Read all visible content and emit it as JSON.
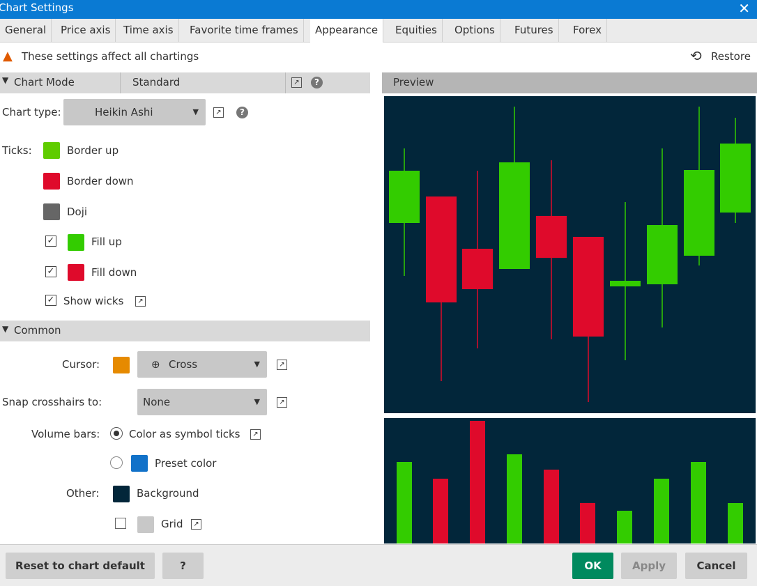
{
  "window": {
    "title": "Chart Settings"
  },
  "tabs": [
    "General",
    "Price axis",
    "Time axis",
    "Favorite time frames",
    "Appearance",
    "Equities",
    "Options",
    "Futures",
    "Forex"
  ],
  "notice": "These settings affect all chartings",
  "restore": "Restore",
  "chart_mode": {
    "label": "Chart Mode",
    "value": "Standard"
  },
  "preview": "Preview",
  "chart_type": {
    "label": "Chart type:",
    "value": "Heikin Ashi"
  },
  "ticks": {
    "label": "Ticks:",
    "items": [
      "Border up",
      "Border down",
      "Doji",
      "Fill up",
      "Fill down",
      "Show wicks"
    ]
  },
  "common": "Common",
  "cursor": {
    "label": "Cursor:",
    "value": "Cross"
  },
  "snap": {
    "label": "Snap crosshairs to:",
    "value": "None"
  },
  "volume_bars": {
    "label": "Volume bars:",
    "options": [
      "Color as symbol ticks",
      "Preset color"
    ]
  },
  "other": {
    "label": "Other:",
    "items": [
      "Background",
      "Grid"
    ]
  },
  "buttons": [
    "Reset to chart default",
    "OK",
    "Apply",
    "Cancel"
  ]
}
